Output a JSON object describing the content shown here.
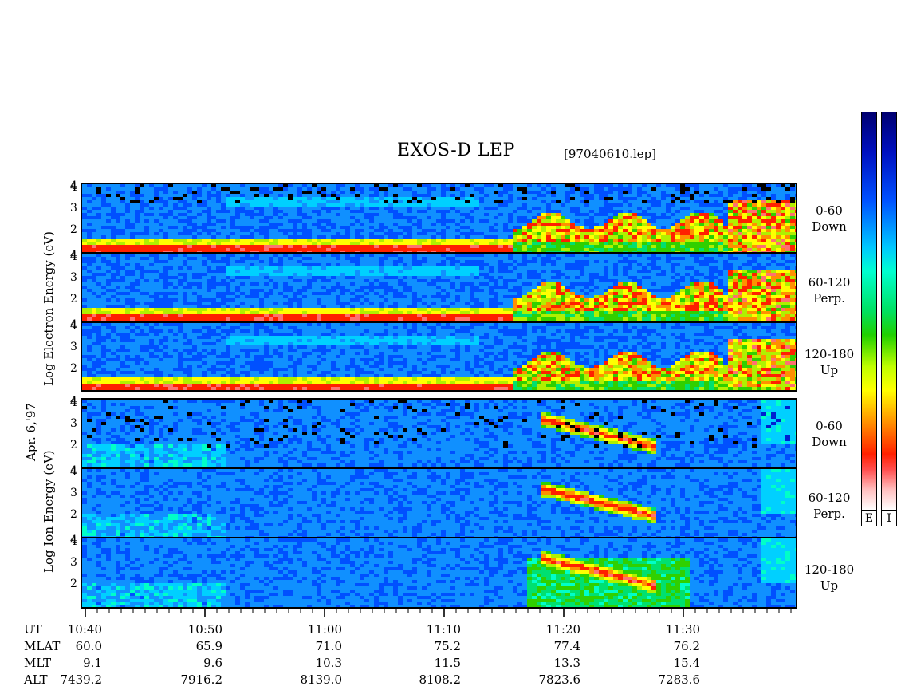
{
  "title": "EXOS-D LEP",
  "filename": "[97040610.lep]",
  "date_label": "Apr. 6,'97",
  "electron_ylabel": "Log  Electron  Energy  (eV)",
  "ion_ylabel": "Log  Ion  Energy  (eV)",
  "pitch_labels": [
    {
      "range": "0-60",
      "dir": "Down"
    },
    {
      "range": "60-120",
      "dir": "Perp."
    },
    {
      "range": "120-180",
      "dir": "Up"
    },
    {
      "range": "0-60",
      "dir": "Down"
    },
    {
      "range": "60-120",
      "dir": "Perp."
    },
    {
      "range": "120-180",
      "dir": "Up"
    }
  ],
  "colorbar_labels": [
    "E",
    "I"
  ],
  "ephemeris": {
    "row_labels": [
      "UT",
      "MLAT",
      "MLT",
      "ALT"
    ],
    "columns": [
      {
        "ut": "10:40",
        "mlat": "60.0",
        "mlt": "9.1",
        "alt": "7439.2"
      },
      {
        "ut": "10:50",
        "mlat": "65.9",
        "mlt": "9.6",
        "alt": "7916.2"
      },
      {
        "ut": "11:00",
        "mlat": "71.0",
        "mlt": "10.3",
        "alt": "8139.0"
      },
      {
        "ut": "11:10",
        "mlat": "75.2",
        "mlt": "11.5",
        "alt": "8108.2"
      },
      {
        "ut": "11:20",
        "mlat": "77.4",
        "mlt": "13.3",
        "alt": "7823.6"
      },
      {
        "ut": "11:30",
        "mlat": "76.2",
        "mlt": "15.4",
        "alt": "7283.6"
      }
    ]
  },
  "chart_data": {
    "type": "heatmap",
    "title": "EXOS-D LEP",
    "x_axis": {
      "label": "UT",
      "ticks": [
        "10:40",
        "10:50",
        "11:00",
        "11:10",
        "11:20",
        "11:30"
      ]
    },
    "y_ticks": [
      "1",
      "2",
      "3",
      "4"
    ],
    "y_ticks_printed": [
      "2",
      "3",
      "4"
    ],
    "panels": [
      {
        "species": "Electron",
        "pitch_angle": "0-60",
        "dir": "Down",
        "ylim": [
          1,
          4.2
        ]
      },
      {
        "species": "Electron",
        "pitch_angle": "60-120",
        "dir": "Perp.",
        "ylim": [
          1,
          4.2
        ]
      },
      {
        "species": "Electron",
        "pitch_angle": "120-180",
        "dir": "Up",
        "ylim": [
          1,
          4.2
        ]
      },
      {
        "species": "Ion",
        "pitch_angle": "0-60",
        "dir": "Down",
        "ylim": [
          1,
          4.2
        ]
      },
      {
        "species": "Ion",
        "pitch_angle": "60-120",
        "dir": "Perp.",
        "ylim": [
          1,
          4.2
        ]
      },
      {
        "species": "Ion",
        "pitch_angle": "120-180",
        "dir": "Up",
        "ylim": [
          1,
          4.2
        ]
      }
    ],
    "colormap": [
      "#000070",
      "#0050ff",
      "#00ffd0",
      "#20d000",
      "#ffff00",
      "#ff9000",
      "#ff2000",
      "#ffffff"
    ]
  }
}
